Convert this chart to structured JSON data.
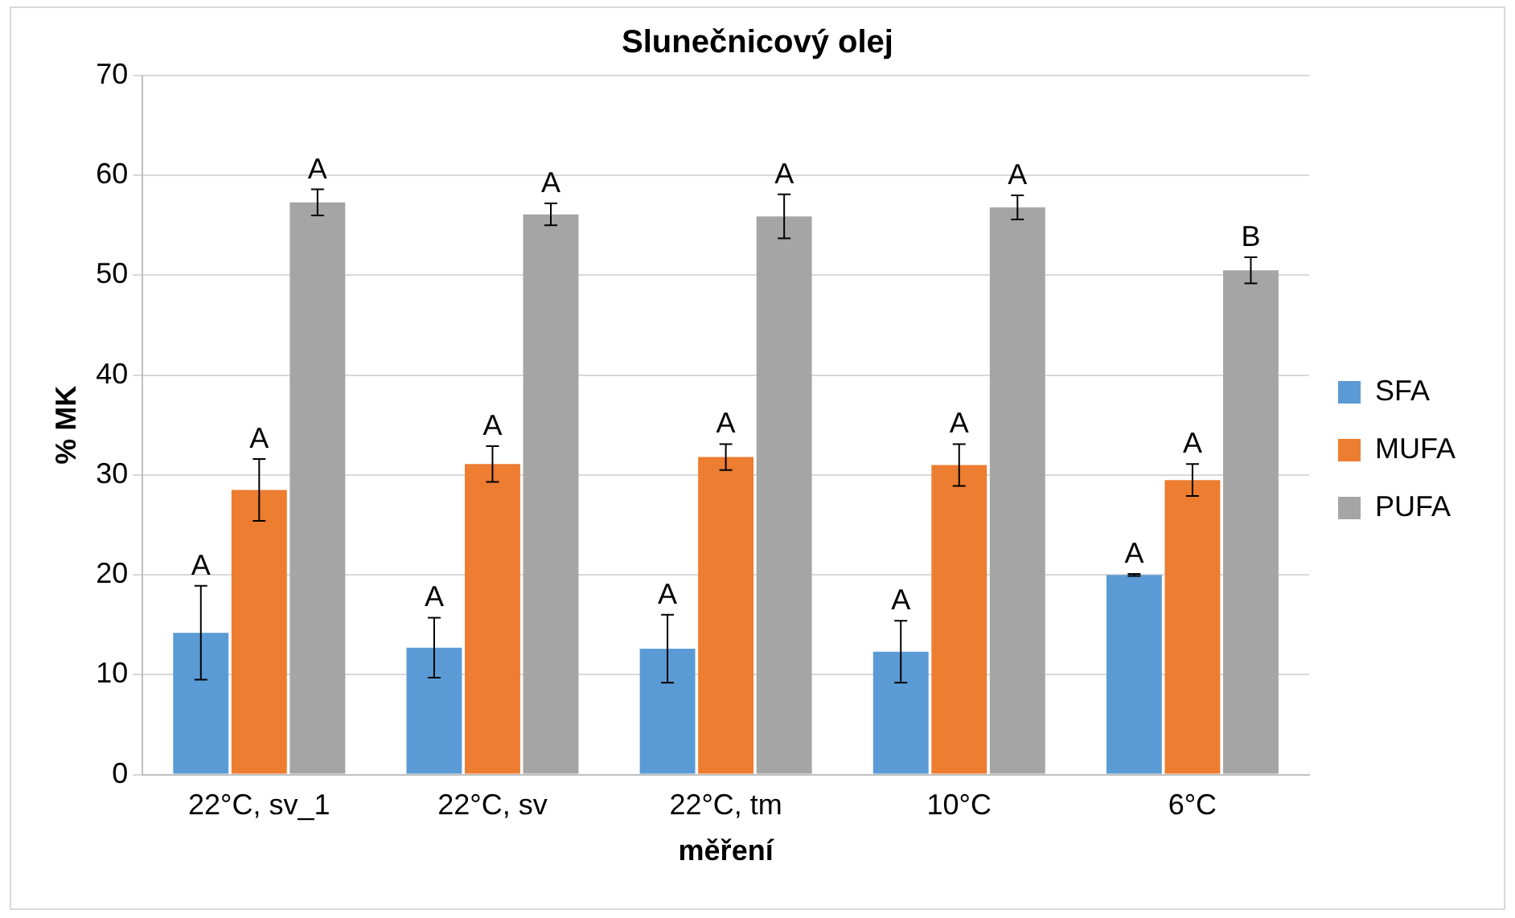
{
  "chart_data": {
    "type": "bar",
    "title": "Slunečnicový olej",
    "xlabel": "měření",
    "ylabel": "% MK",
    "categories": [
      "22°C, sv_1",
      "22°C, sv",
      "22°C, tm",
      "10°C",
      "6°C"
    ],
    "series": [
      {
        "name": "SFA",
        "color": "#5b9bd5",
        "values": [
          14.2,
          12.7,
          12.6,
          12.3,
          20.0
        ],
        "errors": [
          4.7,
          3.0,
          3.4,
          3.1,
          0.1
        ],
        "value_labels": [
          "A",
          "A",
          "A",
          "A",
          "A"
        ]
      },
      {
        "name": "MUFA",
        "color": "#ed7d31",
        "values": [
          28.5,
          31.1,
          31.8,
          31.0,
          29.5
        ],
        "errors": [
          3.1,
          1.8,
          1.3,
          2.1,
          1.6
        ],
        "value_labels": [
          "A",
          "A",
          "A",
          "A",
          "A"
        ]
      },
      {
        "name": "PUFA",
        "color": "#a5a5a5",
        "values": [
          57.3,
          56.1,
          55.9,
          56.8,
          50.5
        ],
        "errors": [
          1.3,
          1.1,
          2.2,
          1.2,
          1.3
        ],
        "value_labels": [
          "A",
          "A",
          "A",
          "A",
          "B"
        ]
      }
    ],
    "ylim": [
      0,
      70
    ],
    "yticks": [
      0,
      10,
      20,
      30,
      40,
      50,
      60,
      70
    ],
    "grid": "y",
    "legend": "right"
  }
}
